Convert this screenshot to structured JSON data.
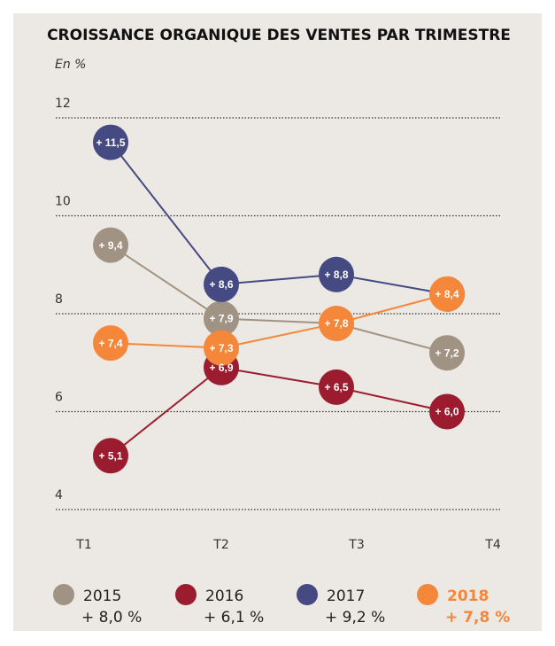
{
  "chart_data": {
    "type": "line",
    "title": "CROISSANCE ORGANIQUE DES VENTES PAR TRIMESTRE",
    "subtitle": "En %",
    "categories": [
      "T1",
      "T2",
      "T3",
      "T4"
    ],
    "ylim": [
      4,
      12
    ],
    "yticks": [
      4,
      6,
      8,
      10,
      12
    ],
    "grid": true,
    "series": [
      {
        "name": "2015",
        "color": "#a09383",
        "values": [
          9.4,
          7.9,
          7.8,
          7.2
        ],
        "value_labels": [
          "+ 9,4",
          "+ 7,9",
          null,
          "+ 7,2"
        ],
        "total": 8.0,
        "total_label": "+ 8,0 %"
      },
      {
        "name": "2016",
        "color": "#9b1c2e",
        "values": [
          5.1,
          6.9,
          6.5,
          6.0
        ],
        "value_labels": [
          "+ 5,1",
          "+ 6,9",
          "+ 6,5",
          "+ 6,0"
        ],
        "total": 6.1,
        "total_label": "+ 6,1 %"
      },
      {
        "name": "2017",
        "color": "#454a82",
        "values": [
          11.5,
          8.6,
          8.8,
          8.4
        ],
        "value_labels": [
          "+ 11,5",
          "+ 8,6",
          "+ 8,8",
          null
        ],
        "total": 9.2,
        "total_label": "+ 9,2 %"
      },
      {
        "name": "2018",
        "color": "#f5873a",
        "values": [
          7.4,
          7.3,
          7.8,
          8.4
        ],
        "value_labels": [
          "+ 7,4",
          "+ 7,3",
          "+ 7,8",
          "+ 8,4"
        ],
        "total": 7.8,
        "total_label": "+ 7,8 %",
        "highlight": true
      }
    ]
  }
}
